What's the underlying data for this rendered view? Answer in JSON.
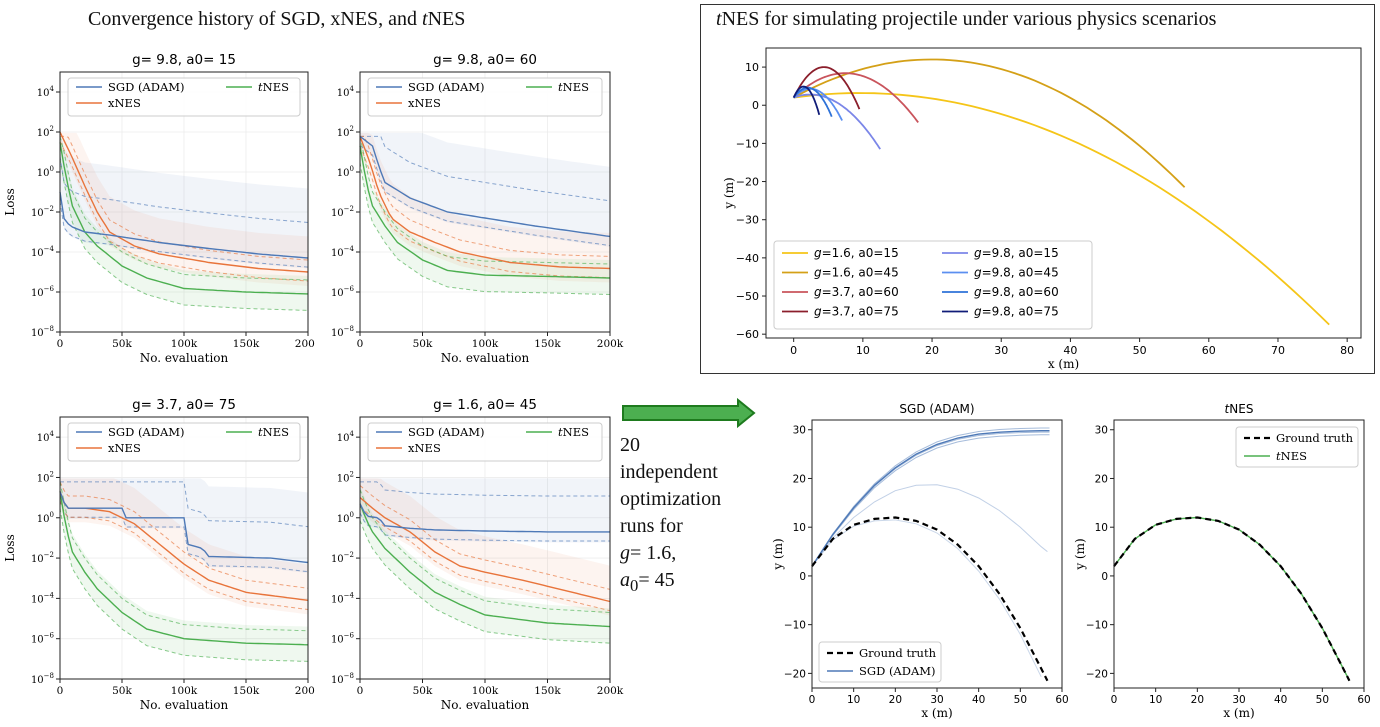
{
  "headings": {
    "left_pre": "Convergence history of SGD, xNES, and ",
    "left_it": "t",
    "left_post": "NES",
    "right_it": "t",
    "right_post": "NES for simulating projectile under various physics scenarios"
  },
  "note": {
    "l1": "20",
    "l2": "independent",
    "l3": "optimization",
    "l4": "runs for",
    "l5_it": "g",
    "l5_rest": "= 1.6,",
    "l6_it": "a",
    "l6_sub": "0",
    "l6_rest": "= 45"
  },
  "colors": {
    "sgd": "#4e79b7",
    "xnes": "#e8743b",
    "tnes": "#4caf50",
    "gold_light": "#f5c518",
    "gold_dark": "#d4a017",
    "red_light": "#c9545c",
    "red_dark": "#8b1e2b",
    "blue1": "#7b86e8",
    "blue2": "#5b8ff0",
    "blue3": "#2e72d8",
    "blue4": "#101c78",
    "arrow_fill": "#4caf50",
    "arrow_stroke": "#1e7b1e"
  },
  "chart_data": [
    {
      "type": "line",
      "title": "g= 9.8,  a0= 15",
      "xlabel": "No. evaluation",
      "ylabel": "Loss",
      "yscale": "log",
      "xlim": [
        0,
        200000
      ],
      "ylim": [
        1e-08,
        100000.0
      ],
      "xticks": [
        "0",
        "50k",
        "100k",
        "150k",
        "200k"
      ],
      "yticks": [
        "10^-8",
        "10^-6",
        "10^-4",
        "10^-2",
        "10^0",
        "10^2",
        "10^4"
      ],
      "legend": [
        "SGD (ADAM)",
        "xNES",
        "tNES"
      ],
      "series": [
        {
          "name": "SGD (ADAM)",
          "color": "sgd",
          "x": [
            0,
            3000,
            8000,
            20000,
            40000,
            80000,
            120000,
            160000,
            200000
          ],
          "y": [
            0.1,
            0.005,
            0.002,
            0.001,
            0.0007,
            0.0003,
            0.00015,
            8e-05,
            5e-05
          ]
        },
        {
          "name": "xNES",
          "color": "xnes",
          "x": [
            0,
            10000,
            20000,
            30000,
            40000,
            60000,
            80000,
            120000,
            160000,
            200000
          ],
          "y": [
            100,
            5,
            0.2,
            0.01,
            0.001,
            0.0002,
            8e-05,
            3e-05,
            1.5e-05,
            1e-05
          ]
        },
        {
          "name": "tNES",
          "color": "tnes",
          "x": [
            0,
            5000,
            10000,
            20000,
            30000,
            50000,
            70000,
            100000,
            150000,
            200000
          ],
          "y": [
            30,
            0.5,
            0.02,
            0.001,
            0.0002,
            2e-05,
            5e-06,
            1.5e-06,
            1e-06,
            8e-07
          ]
        }
      ]
    },
    {
      "type": "line",
      "title": "g= 9.8,  a0= 60",
      "xlabel": "No. evaluation",
      "ylabel": "",
      "yscale": "log",
      "xlim": [
        0,
        200000
      ],
      "ylim": [
        1e-08,
        100000.0
      ],
      "xticks": [
        "0",
        "50k",
        "100k",
        "150k",
        "200k"
      ],
      "yticks": [
        "10^-8",
        "10^-6",
        "10^-4",
        "10^-2",
        "10^0",
        "10^2",
        "10^4"
      ],
      "legend": [
        "SGD (ADAM)",
        "xNES",
        "tNES"
      ],
      "series": [
        {
          "name": "SGD (ADAM)",
          "color": "sgd",
          "x": [
            0,
            10000,
            15000,
            20000,
            40000,
            70000,
            100000,
            140000,
            200000
          ],
          "y": [
            60,
            20,
            2,
            0.3,
            0.05,
            0.01,
            0.005,
            0.002,
            0.0006
          ]
        },
        {
          "name": "xNES",
          "color": "xnes",
          "x": [
            0,
            8000,
            15000,
            25000,
            40000,
            60000,
            80000,
            120000,
            160000,
            200000
          ],
          "y": [
            60,
            3,
            0.1,
            0.005,
            0.001,
            0.0003,
            0.0001,
            3e-05,
            1.8e-05,
            1.5e-05
          ]
        },
        {
          "name": "tNES",
          "color": "tnes",
          "x": [
            0,
            5000,
            10000,
            20000,
            30000,
            50000,
            70000,
            100000,
            150000,
            200000
          ],
          "y": [
            20,
            0.3,
            0.02,
            0.002,
            0.0003,
            4e-05,
            1.2e-05,
            7e-06,
            6e-06,
            5e-06
          ]
        }
      ]
    },
    {
      "type": "line",
      "title": "g= 3.7,  a0= 75",
      "xlabel": "No. evaluation",
      "ylabel": "Loss",
      "yscale": "log",
      "xlim": [
        0,
        200000
      ],
      "ylim": [
        1e-08,
        100000.0
      ],
      "xticks": [
        "0",
        "50k",
        "100k",
        "150k",
        "200k"
      ],
      "yticks": [
        "10^-8",
        "10^-6",
        "10^-4",
        "10^-2",
        "10^0",
        "10^2",
        "10^4"
      ],
      "legend": [
        "SGD (ADAM)",
        "xNES",
        "tNES"
      ],
      "series": [
        {
          "name": "SGD (ADAM)",
          "color": "sgd",
          "x": [
            0,
            5000,
            50000,
            52000,
            100000,
            102000,
            115000,
            120000,
            170000,
            200000
          ],
          "y": [
            20,
            3,
            3,
            1,
            1,
            0.05,
            0.03,
            0.012,
            0.01,
            0.006
          ]
        },
        {
          "name": "xNES",
          "color": "xnes",
          "x": [
            0,
            5000,
            20000,
            40000,
            60000,
            80000,
            100000,
            120000,
            150000,
            200000
          ],
          "y": [
            20,
            3,
            3,
            2,
            0.5,
            0.05,
            0.005,
            0.0008,
            0.0002,
            8e-05
          ]
        },
        {
          "name": "tNES",
          "color": "tnes",
          "x": [
            0,
            5000,
            10000,
            20000,
            30000,
            50000,
            70000,
            100000,
            150000,
            200000
          ],
          "y": [
            20,
            0.3,
            0.02,
            0.002,
            0.0003,
            2e-05,
            3e-06,
            1e-06,
            6e-07,
            5e-07
          ]
        }
      ]
    },
    {
      "type": "line",
      "title": "g= 1.6,  a0= 45",
      "xlabel": "No. evaluation",
      "ylabel": "",
      "yscale": "log",
      "xlim": [
        0,
        200000
      ],
      "ylim": [
        1e-08,
        100000.0
      ],
      "xticks": [
        "0",
        "50k",
        "100k",
        "150k",
        "200k"
      ],
      "yticks": [
        "10^-8",
        "10^-6",
        "10^-4",
        "10^-2",
        "10^0",
        "10^2",
        "10^4"
      ],
      "legend": [
        "SGD (ADAM)",
        "xNES",
        "tNES"
      ],
      "series": [
        {
          "name": "SGD (ADAM)",
          "color": "sgd",
          "x": [
            0,
            5000,
            15000,
            20000,
            40000,
            60000,
            100000,
            150000,
            200000
          ],
          "y": [
            5,
            1.2,
            1,
            0.4,
            0.3,
            0.25,
            0.22,
            0.2,
            0.2
          ]
        },
        {
          "name": "xNES",
          "color": "xnes",
          "x": [
            0,
            10000,
            20000,
            40000,
            60000,
            80000,
            100000,
            130000,
            170000,
            200000
          ],
          "y": [
            10,
            3,
            1,
            0.2,
            0.02,
            0.004,
            0.002,
            0.0008,
            0.0002,
            7e-05
          ]
        },
        {
          "name": "tNES",
          "color": "tnes",
          "x": [
            0,
            5000,
            10000,
            20000,
            40000,
            60000,
            80000,
            100000,
            150000,
            200000
          ],
          "y": [
            5,
            0.8,
            0.2,
            0.03,
            0.002,
            0.0002,
            5e-05,
            1.5e-05,
            6e-06,
            4e-06
          ]
        }
      ]
    },
    {
      "type": "line",
      "title": "",
      "xlabel": "x (m)",
      "ylabel": "y (m)",
      "xlim": [
        -4,
        82
      ],
      "ylim": [
        -61,
        15
      ],
      "xticks": [
        "0",
        "10",
        "20",
        "30",
        "40",
        "50",
        "60",
        "70",
        "80"
      ],
      "yticks": [
        "−60",
        "−50",
        "−40",
        "−30",
        "−20",
        "−10",
        "0",
        "10"
      ],
      "legend": [
        "g=1.6, a0=15",
        "g=1.6, a0=45",
        "g=3.7, a0=60",
        "g=3.7, a0=75",
        "g=9.8, a0=15",
        "g=9.8, a0=45",
        "g=9.8, a0=60",
        "g=9.8, a0=75"
      ],
      "series": [
        {
          "name": "g=1.6, a0=15",
          "color": "gold_light",
          "x_end": 77.4,
          "y_end": -57.5,
          "y_peak": 3.2
        },
        {
          "name": "g=1.6, a0=45",
          "color": "gold_dark",
          "x_end": 56.5,
          "y_end": -21.5,
          "y_peak": 12
        },
        {
          "name": "g=3.7, a0=60",
          "color": "red_light",
          "x_end": 18,
          "y_end": -4.5,
          "y_peak": 8.4
        },
        {
          "name": "g=3.7, a0=75",
          "color": "red_dark",
          "x_end": 9.5,
          "y_end": -1,
          "y_peak": 10
        },
        {
          "name": "g=9.8, a0=15",
          "color": "blue1",
          "x_end": 12.5,
          "y_end": -11.5,
          "y_peak": 2.8
        },
        {
          "name": "g=9.8, a0=45",
          "color": "blue2",
          "x_end": 7,
          "y_end": -4,
          "y_peak": 4.3
        },
        {
          "name": "g=9.8, a0=60",
          "color": "blue3",
          "x_end": 5.5,
          "y_end": -3,
          "y_peak": 4.6
        },
        {
          "name": "g=9.8, a0=75",
          "color": "blue4",
          "x_end": 3.7,
          "y_end": -2.5,
          "y_peak": 4.9
        }
      ]
    },
    {
      "type": "line",
      "title": "SGD (ADAM)",
      "xlabel": "x (m)",
      "ylabel": "y (m)",
      "xlim": [
        0,
        60
      ],
      "ylim": [
        -23,
        32
      ],
      "xticks": [
        "0",
        "10",
        "20",
        "30",
        "40",
        "50",
        "60"
      ],
      "yticks": [
        "−20",
        "−10",
        "0",
        "10",
        "20",
        "30"
      ],
      "legend": [
        "Ground truth",
        "SGD (ADAM)"
      ],
      "series": [
        {
          "name": "Ground truth",
          "color": "#000000",
          "x": [
            0,
            5,
            10,
            15,
            20,
            25,
            30,
            35,
            40,
            45,
            50,
            55,
            56.5
          ],
          "y": [
            2,
            7.6,
            10.5,
            11.7,
            12,
            11.3,
            9.5,
            6.4,
            2,
            -3.7,
            -10.7,
            -19,
            -21.5
          ]
        },
        {
          "name": "SGD (ADAM)",
          "color": "sgd",
          "x": [
            0,
            5,
            10,
            15,
            20,
            25,
            30,
            35,
            40,
            45,
            50,
            55,
            57
          ],
          "y": [
            2,
            8.5,
            14,
            18.6,
            22.2,
            25,
            27,
            28.3,
            29.1,
            29.5,
            29.7,
            29.8,
            29.8
          ]
        }
      ]
    },
    {
      "type": "line",
      "title": "tNES",
      "xlabel": "x (m)",
      "ylabel": "y (m)",
      "xlim": [
        0,
        60
      ],
      "ylim": [
        -23,
        32
      ],
      "xticks": [
        "0",
        "10",
        "20",
        "30",
        "40",
        "50",
        "60"
      ],
      "yticks": [
        "−20",
        "−10",
        "0",
        "10",
        "20",
        "30"
      ],
      "legend": [
        "Ground truth",
        "tNES"
      ],
      "series": [
        {
          "name": "Ground truth",
          "color": "#000000",
          "x": [
            0,
            5,
            10,
            15,
            20,
            25,
            30,
            35,
            40,
            45,
            50,
            55,
            56.5
          ],
          "y": [
            2,
            7.6,
            10.5,
            11.7,
            12,
            11.3,
            9.5,
            6.4,
            2,
            -3.7,
            -10.7,
            -19,
            -21.5
          ]
        },
        {
          "name": "tNES",
          "color": "tnes",
          "x": [
            0,
            5,
            10,
            15,
            20,
            25,
            30,
            35,
            40,
            45,
            50,
            55,
            56.5
          ],
          "y": [
            2,
            7.6,
            10.5,
            11.7,
            12,
            11.3,
            9.5,
            6.4,
            2,
            -3.7,
            -10.7,
            -19,
            -21.5
          ]
        }
      ]
    }
  ]
}
